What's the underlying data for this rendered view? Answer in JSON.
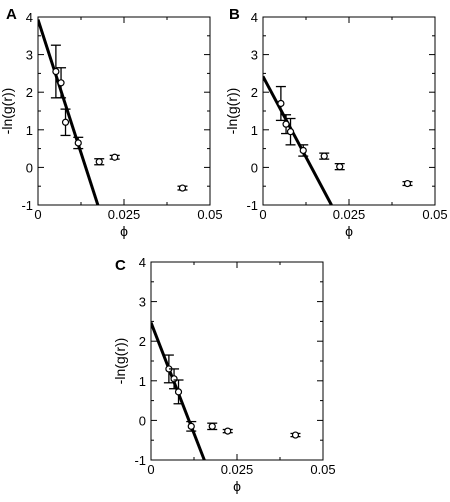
{
  "chart_data": [
    {
      "type": "scatter",
      "panel_label": "A",
      "xlabel": "ϕ",
      "ylabel": "-ln(g(r))",
      "xlim": [
        0,
        0.05
      ],
      "ylim": [
        -1,
        4
      ],
      "xticks": [
        0,
        0.025,
        0.05
      ],
      "xtick_labels": [
        "0",
        "0.025",
        "0.05"
      ],
      "yticks": [
        -1,
        0,
        1,
        2,
        3,
        4
      ],
      "ytick_labels": [
        "-1",
        "0",
        "1",
        "2",
        "3",
        "4"
      ],
      "grid": false,
      "points": [
        {
          "x": 0.0052,
          "y": 2.55,
          "err": 0.7
        },
        {
          "x": 0.0067,
          "y": 2.25,
          "err": 0.4
        },
        {
          "x": 0.008,
          "y": 1.2,
          "err": 0.35
        },
        {
          "x": 0.0117,
          "y": 0.65,
          "err": 0.15
        },
        {
          "x": 0.0178,
          "y": 0.15,
          "err": 0.08
        },
        {
          "x": 0.0223,
          "y": 0.27,
          "err": 0.05
        },
        {
          "x": 0.042,
          "y": -0.55,
          "err": 0.05
        }
      ],
      "fit_line": {
        "x": [
          0,
          0.0174
        ],
        "y": [
          3.93,
          -1
        ]
      }
    },
    {
      "type": "scatter",
      "panel_label": "B",
      "xlabel": "ϕ",
      "ylabel": "-ln(g(r))",
      "xlim": [
        0,
        0.05
      ],
      "ylim": [
        -1,
        4
      ],
      "xticks": [
        0,
        0.025,
        0.05
      ],
      "xtick_labels": [
        "0",
        "0.025",
        "0.05"
      ],
      "yticks": [
        -1,
        0,
        1,
        2,
        3,
        4
      ],
      "ytick_labels": [
        "-1",
        "0",
        "1",
        "2",
        "3",
        "4"
      ],
      "grid": false,
      "points": [
        {
          "x": 0.0052,
          "y": 1.7,
          "err": 0.45
        },
        {
          "x": 0.0067,
          "y": 1.15,
          "err": 0.25
        },
        {
          "x": 0.008,
          "y": 0.95,
          "err": 0.35
        },
        {
          "x": 0.0117,
          "y": 0.45,
          "err": 0.15
        },
        {
          "x": 0.0178,
          "y": 0.3,
          "err": 0.08
        },
        {
          "x": 0.0223,
          "y": 0.02,
          "err": 0.08
        },
        {
          "x": 0.042,
          "y": -0.43,
          "err": 0.05
        }
      ],
      "fit_line": {
        "x": [
          0,
          0.0199
        ],
        "y": [
          2.42,
          -1
        ]
      }
    },
    {
      "type": "scatter",
      "panel_label": "C",
      "xlabel": "ϕ",
      "ylabel": "-ln(g(r))",
      "xlim": [
        0,
        0.05
      ],
      "ylim": [
        -1,
        4
      ],
      "xticks": [
        0,
        0.025,
        0.05
      ],
      "xtick_labels": [
        "0",
        "0.025",
        "0.05"
      ],
      "yticks": [
        -1,
        0,
        1,
        2,
        3,
        4
      ],
      "ytick_labels": [
        "-1",
        "0",
        "1",
        "2",
        "3",
        "4"
      ],
      "grid": false,
      "points": [
        {
          "x": 0.0052,
          "y": 1.3,
          "err": 0.35
        },
        {
          "x": 0.0067,
          "y": 1.05,
          "err": 0.25
        },
        {
          "x": 0.008,
          "y": 0.72,
          "err": 0.3
        },
        {
          "x": 0.0117,
          "y": -0.15,
          "err": 0.12
        },
        {
          "x": 0.0178,
          "y": -0.15,
          "err": 0.08
        },
        {
          "x": 0.0223,
          "y": -0.27,
          "err": 0.04
        },
        {
          "x": 0.042,
          "y": -0.37,
          "err": 0.04
        }
      ],
      "fit_line": {
        "x": [
          0,
          0.0155
        ],
        "y": [
          2.47,
          -1
        ]
      }
    }
  ]
}
